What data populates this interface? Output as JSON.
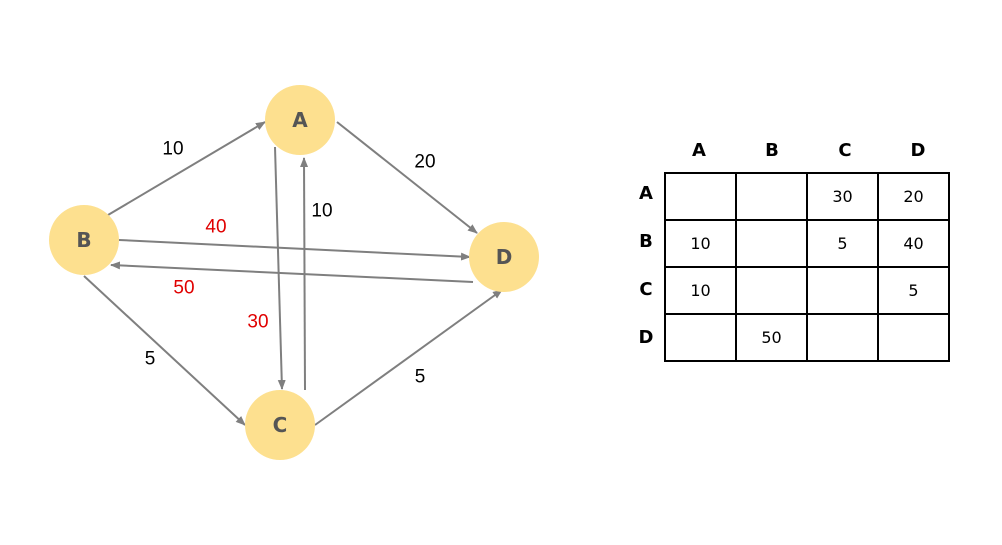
{
  "graph": {
    "nodes": [
      {
        "id": "A",
        "label": "A"
      },
      {
        "id": "B",
        "label": "B"
      },
      {
        "id": "C",
        "label": "C"
      },
      {
        "id": "D",
        "label": "D"
      }
    ],
    "edges": [
      {
        "from": "B",
        "to": "A",
        "weight": "10",
        "color": "#000000"
      },
      {
        "from": "A",
        "to": "D",
        "weight": "20",
        "color": "#000000"
      },
      {
        "from": "C",
        "to": "A",
        "weight": "10",
        "color": "#000000"
      },
      {
        "from": "A",
        "to": "C",
        "weight": "30",
        "color": "#e00000"
      },
      {
        "from": "B",
        "to": "D",
        "weight": "40",
        "color": "#e00000"
      },
      {
        "from": "D",
        "to": "B",
        "weight": "50",
        "color": "#e00000"
      },
      {
        "from": "B",
        "to": "C",
        "weight": "5",
        "color": "#000000"
      },
      {
        "from": "C",
        "to": "D",
        "weight": "5",
        "color": "#000000"
      }
    ],
    "node_color": "#fde08f",
    "edge_line_color": "#7f7f7f"
  },
  "matrix": {
    "columns": [
      "A",
      "B",
      "C",
      "D"
    ],
    "rows": [
      {
        "label": "A",
        "cells": [
          "",
          "",
          "30",
          "20"
        ]
      },
      {
        "label": "B",
        "cells": [
          "10",
          "",
          "5",
          "40"
        ]
      },
      {
        "label": "C",
        "cells": [
          "10",
          "",
          "",
          "5"
        ]
      },
      {
        "label": "D",
        "cells": [
          "",
          "50",
          "",
          ""
        ]
      }
    ]
  }
}
